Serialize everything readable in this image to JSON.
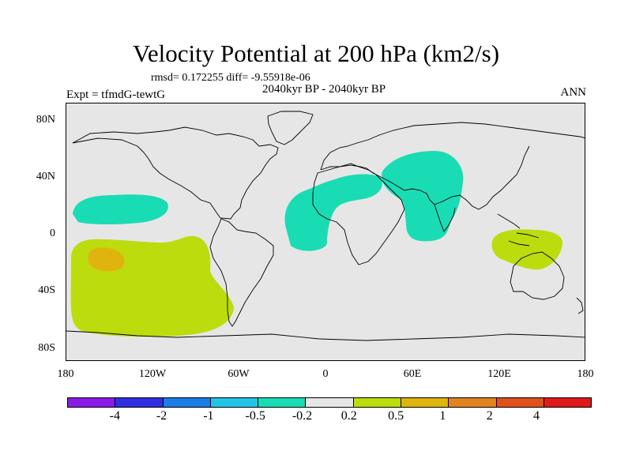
{
  "title": "Velocity Potential at 200 hPa (km2/s)",
  "stats": "rmsd= 0.172255  diff= -9.55918e-06",
  "subtitle": "2040kyr BP - 2040kyr BP",
  "expt": "Expt = tfmdG-tewtG",
  "season": "ANN",
  "lat_labels": [
    "80N",
    "40N",
    "0",
    "40S",
    "80S"
  ],
  "lon_labels": [
    "180",
    "120W",
    "60W",
    "0",
    "60E",
    "120E",
    "180"
  ],
  "colorbar": {
    "labels": [
      "-4",
      "-2",
      "-1",
      "-0.5",
      "-0.2",
      "0.2",
      "0.5",
      "1",
      "2",
      "4"
    ],
    "colors": [
      "#8a1ae6",
      "#2f2fe0",
      "#1a7ee6",
      "#22c4e6",
      "#1adcb4",
      "#e6e6e6",
      "#bcdc0e",
      "#e0b40e",
      "#e0841e",
      "#e0501a",
      "#e01a1a"
    ]
  },
  "regions": [
    {
      "name": "North Pacific",
      "level": "-0.5 to -0.2",
      "color": "#1adcb4"
    },
    {
      "name": "Atlantic-Africa",
      "level": "-0.5 to -0.2",
      "color": "#1adcb4"
    },
    {
      "name": "Eurasia-Indian Ocean",
      "level": "-0.5 to -0.2",
      "color": "#1adcb4"
    },
    {
      "name": "South Pacific",
      "level": "0.2 to 0.5",
      "color": "#bcdc0e"
    },
    {
      "name": "South Pacific core",
      "level": "0.5 to 1",
      "color": "#e0b40e"
    },
    {
      "name": "Maritime Continent",
      "level": "0.2 to 0.5",
      "color": "#bcdc0e"
    }
  ]
}
